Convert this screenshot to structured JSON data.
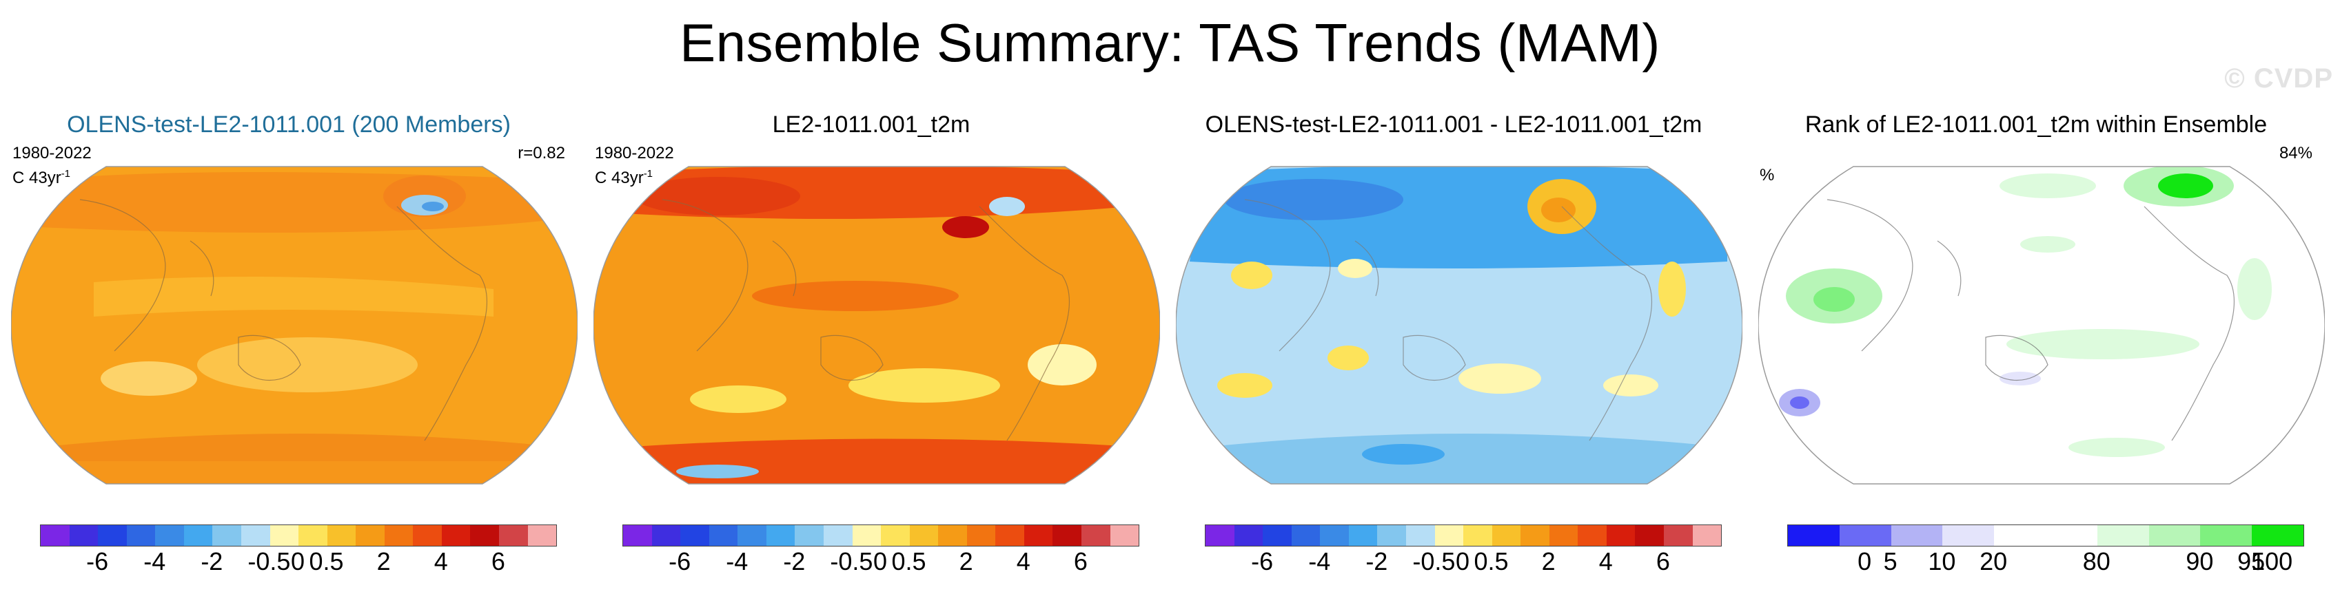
{
  "title": "Ensemble Summary: TAS Trends (MAM)",
  "watermark": "© CVDP",
  "chart_data": [
    {
      "type": "heatmap",
      "title": "OLENS-test-LE2-1011.001 (200 Members)",
      "period": "1980-2022",
      "units": "C 43yr",
      "units_sup": "-1",
      "stat": "r=0.82",
      "projection": "Robinson-like global map",
      "colorbar": {
        "colors": [
          "#7b26e6",
          "#3f2ee0",
          "#2244e3",
          "#2e67e3",
          "#3a8ae6",
          "#43a8ef",
          "#83c6ee",
          "#b6def6",
          "#fff7b0",
          "#fde35a",
          "#f8c02a",
          "#f59b16",
          "#f27411",
          "#ec4d10",
          "#d81e0c",
          "#c00d0a",
          "#d24447",
          "#f5abab"
        ],
        "ticks": [
          "-6",
          "-4",
          "-2",
          "-0.5",
          "0",
          "0.5",
          "2",
          "4",
          "6"
        ]
      }
    },
    {
      "type": "heatmap",
      "title": "LE2-1011.001_t2m",
      "period": "1980-2022",
      "units": "C 43yr",
      "units_sup": "-1",
      "projection": "Robinson-like global map",
      "colorbar": {
        "colors": [
          "#7b26e6",
          "#3f2ee0",
          "#2244e3",
          "#2e67e3",
          "#3a8ae6",
          "#43a8ef",
          "#83c6ee",
          "#b6def6",
          "#fff7b0",
          "#fde35a",
          "#f8c02a",
          "#f59b16",
          "#f27411",
          "#ec4d10",
          "#d81e0c",
          "#c00d0a",
          "#d24447",
          "#f5abab"
        ],
        "ticks": [
          "-6",
          "-4",
          "-2",
          "-0.5",
          "0",
          "0.5",
          "2",
          "4",
          "6"
        ]
      }
    },
    {
      "type": "heatmap",
      "title": "OLENS-test-LE2-1011.001 - LE2-1011.001_t2m",
      "projection": "Robinson-like global map",
      "colorbar": {
        "colors": [
          "#7b26e6",
          "#3f2ee0",
          "#2244e3",
          "#2e67e3",
          "#3a8ae6",
          "#43a8ef",
          "#83c6ee",
          "#b6def6",
          "#fff7b0",
          "#fde35a",
          "#f8c02a",
          "#f59b16",
          "#f27411",
          "#ec4d10",
          "#d81e0c",
          "#c00d0a",
          "#d24447",
          "#f5abab"
        ],
        "ticks": [
          "-6",
          "-4",
          "-2",
          "-0.5",
          "0",
          "0.5",
          "2",
          "4",
          "6"
        ]
      }
    },
    {
      "type": "heatmap",
      "title": "Rank of LE2-1011.001_t2m within Ensemble",
      "units": "%",
      "stat": "84%",
      "projection": "Robinson-like global map",
      "colorbar": {
        "colors": [
          "#1a1af5",
          "#6a6af5",
          "#b3b3f5",
          "#e4e4fb",
          "#ffffff",
          "#ffffff",
          "#ddfbdd",
          "#b7f5b7",
          "#7ff07f",
          "#12e612"
        ],
        "ticks": [
          "0",
          "5",
          "10",
          "20",
          "80",
          "90",
          "95",
          "100"
        ]
      }
    }
  ]
}
